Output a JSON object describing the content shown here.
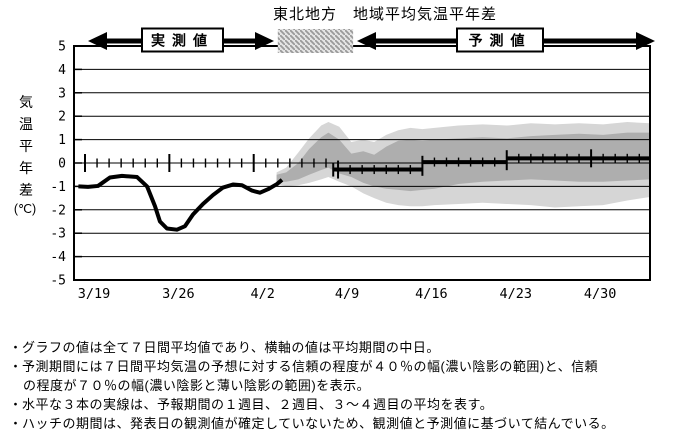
{
  "chart_data": {
    "type": "line",
    "title": "東北地方　地域平均気温平年差",
    "y_axis": {
      "label_chars": [
        "気",
        "温",
        "平",
        "年",
        "差"
      ],
      "unit": "(℃)",
      "tick_labels": [
        "5",
        "4",
        "3",
        "2",
        "1",
        "0",
        "-1",
        "-2",
        "-3",
        "-4",
        "-5"
      ],
      "tick_values": [
        5,
        4,
        3,
        2,
        1,
        0,
        -1,
        -2,
        -3,
        -4,
        -5
      ],
      "ylim": [
        -5,
        5
      ],
      "grid": true
    },
    "x_axis": {
      "tick_labels": [
        "3/19",
        "3/26",
        "4/2",
        "4/9",
        "4/16",
        "4/23",
        "4/30"
      ],
      "tick_days": [
        0,
        7,
        14,
        21,
        28,
        35,
        42
      ],
      "day_range": [
        -0.9,
        46.9
      ]
    },
    "observed": {
      "name": "実測値",
      "points": [
        [
          -0.55,
          -1.0
        ],
        [
          0.25,
          -1.02
        ],
        [
          1.08,
          -0.98
        ],
        [
          2.07,
          -0.62
        ],
        [
          3.07,
          -0.55
        ],
        [
          4.32,
          -0.6
        ],
        [
          5.15,
          -1.0
        ],
        [
          5.81,
          -1.85
        ],
        [
          6.22,
          -2.5
        ],
        [
          6.8,
          -2.8
        ],
        [
          7.63,
          -2.85
        ],
        [
          8.3,
          -2.7
        ],
        [
          8.96,
          -2.2
        ],
        [
          9.79,
          -1.75
        ],
        [
          10.62,
          -1.37
        ],
        [
          11.45,
          -1.05
        ],
        [
          12.28,
          -0.92
        ],
        [
          13.03,
          -0.95
        ],
        [
          13.86,
          -1.18
        ],
        [
          14.52,
          -1.27
        ],
        [
          15.19,
          -1.12
        ],
        [
          15.93,
          -0.9
        ],
        [
          16.35,
          -0.72
        ]
      ]
    },
    "forecast_means": [
      {
        "label": "1週目",
        "from": 20.6,
        "to": 28.0,
        "value": -0.28
      },
      {
        "label": "2週目",
        "from": 28.0,
        "to": 35.0,
        "value": 0.04
      },
      {
        "label": "3～4週目",
        "from": 35.0,
        "to": 46.9,
        "value": 0.2
      }
    ],
    "hatch_period_days": [
      16.0,
      22.25
    ],
    "confidence_bands": {
      "band40_label": "信頼度40%（濃い陰影）",
      "band70_label": "信頼度70%（濃い陰影と薄い陰影）",
      "points": [
        {
          "day": 15.9,
          "dark": [
            -0.8,
            -0.5
          ],
          "light": [
            -0.9,
            -0.4
          ]
        },
        {
          "day": 16.7,
          "dark": [
            -0.8,
            -0.4
          ],
          "light": [
            -1.0,
            -0.2
          ]
        },
        {
          "day": 17.7,
          "dark": [
            -0.7,
            0.0
          ],
          "light": [
            -0.95,
            0.45
          ]
        },
        {
          "day": 18.6,
          "dark": [
            -0.5,
            0.6
          ],
          "light": [
            -0.85,
            1.05
          ]
        },
        {
          "day": 19.6,
          "dark": [
            -0.3,
            1.1
          ],
          "light": [
            -0.7,
            1.6
          ]
        },
        {
          "day": 20.2,
          "dark": [
            -0.2,
            1.3
          ],
          "light": [
            -0.6,
            1.75
          ]
        },
        {
          "day": 21.1,
          "dark": [
            -0.45,
            1.0
          ],
          "light": [
            -0.8,
            1.55
          ]
        },
        {
          "day": 22.1,
          "dark": [
            -0.6,
            0.4
          ],
          "light": [
            -1.0,
            0.9
          ]
        },
        {
          "day": 23.1,
          "dark": [
            -0.85,
            0.5
          ],
          "light": [
            -1.3,
            1.0
          ]
        },
        {
          "day": 24.0,
          "dark": [
            -1.0,
            0.35
          ],
          "light": [
            -1.5,
            0.9
          ]
        },
        {
          "day": 25.0,
          "dark": [
            -1.1,
            0.7
          ],
          "light": [
            -1.7,
            1.2
          ]
        },
        {
          "day": 26.0,
          "dark": [
            -1.15,
            0.95
          ],
          "light": [
            -1.8,
            1.4
          ]
        },
        {
          "day": 27.0,
          "dark": [
            -1.2,
            1.0
          ],
          "light": [
            -1.85,
            1.5
          ]
        },
        {
          "day": 28.0,
          "dark": [
            -1.15,
            0.95
          ],
          "light": [
            -1.85,
            1.45
          ]
        },
        {
          "day": 29.0,
          "dark": [
            -1.1,
            1.0
          ],
          "light": [
            -1.8,
            1.5
          ]
        },
        {
          "day": 31.0,
          "dark": [
            -0.9,
            1.05
          ],
          "light": [
            -1.75,
            1.6
          ]
        },
        {
          "day": 33.0,
          "dark": [
            -0.8,
            1.1
          ],
          "light": [
            -1.7,
            1.65
          ]
        },
        {
          "day": 35.0,
          "dark": [
            -0.75,
            1.05
          ],
          "light": [
            -1.75,
            1.6
          ]
        },
        {
          "day": 37.0,
          "dark": [
            -0.7,
            1.15
          ],
          "light": [
            -1.8,
            1.7
          ]
        },
        {
          "day": 39.0,
          "dark": [
            -0.75,
            1.2
          ],
          "light": [
            -1.9,
            1.65
          ]
        },
        {
          "day": 41.0,
          "dark": [
            -0.8,
            1.25
          ],
          "light": [
            -1.85,
            1.7
          ]
        },
        {
          "day": 43.0,
          "dark": [
            -0.8,
            1.2
          ],
          "light": [
            -1.8,
            1.65
          ]
        },
        {
          "day": 45.0,
          "dark": [
            -0.75,
            1.3
          ],
          "light": [
            -1.6,
            1.75
          ]
        },
        {
          "day": 46.9,
          "dark": [
            -0.7,
            1.3
          ],
          "light": [
            -1.45,
            1.7
          ]
        }
      ]
    }
  },
  "top_legend": {
    "observed_label": "実測値",
    "forecast_label": "予測値"
  },
  "notes": {
    "bullet": "・",
    "lines": [
      {
        "bullet": true,
        "indent": false,
        "text": "グラフの値は全て７日間平均値であり、横軸の値は平均期間の中日。"
      },
      {
        "bullet": true,
        "indent": false,
        "text": "予測期間には７日間平均気温の予想に対する信頼の程度が４０％の幅(濃い陰影の範囲)と、信頼"
      },
      {
        "bullet": false,
        "indent": true,
        "text": "の程度が７０％の幅(濃い陰影と薄い陰影の範囲)を表示。"
      },
      {
        "bullet": true,
        "indent": false,
        "text": "水平な３本の実線は、予報期間の１週目、２週目、３～４週目の平均を表す。"
      },
      {
        "bullet": true,
        "indent": false,
        "text": "ハッチの期間は、発表日の観測値が確定していないため、観測値と予測値に基づいて結んでいる。"
      }
    ]
  },
  "colors": {
    "band40_dark": "#aeaeae",
    "band70_light": "#d6d6d6",
    "hatch_bg": "#e4e4e4",
    "hatch_stripe": "#9a9a9a",
    "line": "#000000",
    "background": "#ffffff"
  }
}
